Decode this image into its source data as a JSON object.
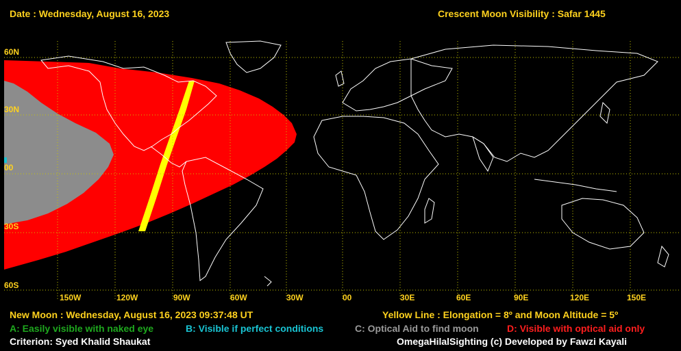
{
  "header": {
    "date": "Date : Wednesday, August 16, 2023",
    "title": "Crescent Moon Visibility : Safar  1445"
  },
  "map": {
    "lat_labels": [
      "60N",
      "30N",
      "00",
      "30S",
      "60S"
    ],
    "lon_labels": [
      "150W",
      "120W",
      "90W",
      "60W",
      "30W",
      "00",
      "30E",
      "60E",
      "90E",
      "120E",
      "150E"
    ],
    "zones": {
      "D_color": "#ff0000",
      "C_color": "#8c8c8c",
      "yellow_line_color": "#ffff00",
      "grid_color": "#c8c800",
      "coast_color": "#ffffff"
    }
  },
  "footer": {
    "new_moon": "New Moon : Wednesday, August 16, 2023  09:37:48  UT",
    "yellow_line": "Yellow Line : Elongation = 8º  and Moon Altitude = 5º",
    "legend_a": "A: Easily visible with naked eye",
    "legend_b": "B: Visible if perfect conditions",
    "legend_c": "C: Optical Aid to find moon",
    "legend_d": "D: Visible with optical aid only",
    "criterion": "Criterion: Syed Khalid Shaukat",
    "credit": "OmegaHilalSighting  (c)  Developed by Fawzi Kayali"
  }
}
